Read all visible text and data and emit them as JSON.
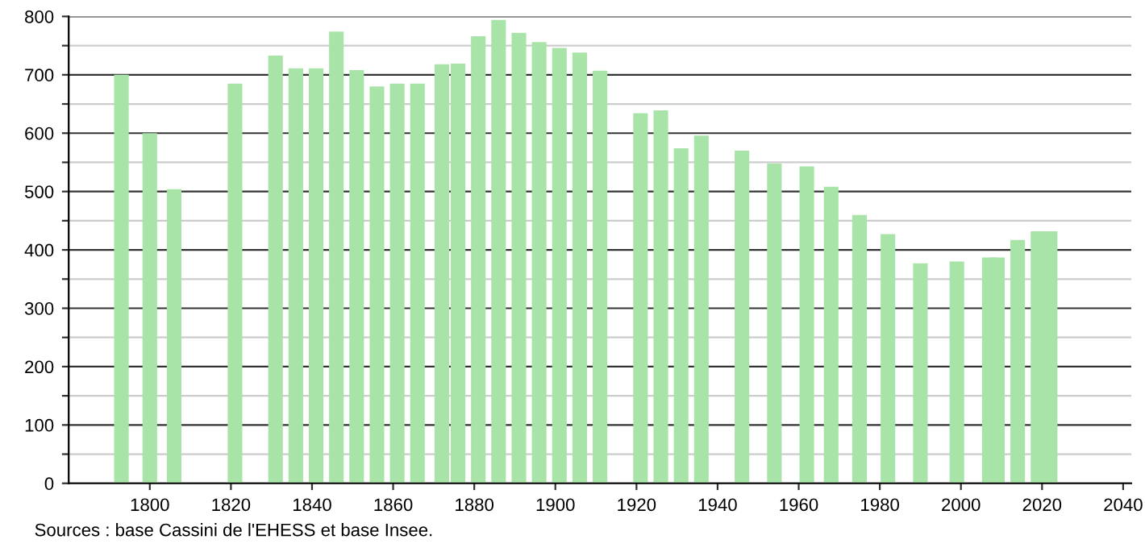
{
  "chart_data": {
    "type": "bar",
    "x": [
      1793,
      1800,
      1806,
      1821,
      1831,
      1836,
      1841,
      1846,
      1851,
      1856,
      1861,
      1866,
      1872,
      1876,
      1881,
      1886,
      1891,
      1896,
      1901,
      1906,
      1911,
      1921,
      1926,
      1931,
      1936,
      1946,
      1954,
      1962,
      1968,
      1975,
      1982,
      1990,
      1999,
      2007,
      2009,
      2014,
      2019,
      2022
    ],
    "values": [
      700,
      600,
      504,
      685,
      733,
      711,
      711,
      774,
      708,
      680,
      685,
      685,
      718,
      719,
      766,
      794,
      772,
      756,
      746,
      738,
      707,
      634,
      639,
      574,
      596,
      570,
      548,
      543,
      508,
      460,
      427,
      377,
      380,
      387,
      387,
      417,
      432,
      432
    ],
    "color": "#a8e4a8",
    "xlim": [
      1780,
      2042
    ],
    "xticks": [
      1800,
      1820,
      1840,
      1860,
      1880,
      1900,
      1920,
      1940,
      1960,
      1980,
      2000,
      2020,
      2040
    ],
    "ylim": [
      0,
      800
    ],
    "yticks": [
      0,
      {
        "value": 50,
        "label": null
      },
      100,
      {
        "value": 150,
        "label": null
      },
      200,
      {
        "value": 250,
        "label": null
      },
      300,
      {
        "value": 350,
        "label": null
      },
      400,
      {
        "value": 450,
        "label": null
      },
      500,
      {
        "value": 550,
        "label": null
      },
      600,
      {
        "value": 650,
        "label": null
      },
      700,
      {
        "value": 750,
        "label": null
      },
      800
    ],
    "grid": "y",
    "annotations": [
      "Sources : base Cassini de l'EHESS et base Insee."
    ]
  }
}
